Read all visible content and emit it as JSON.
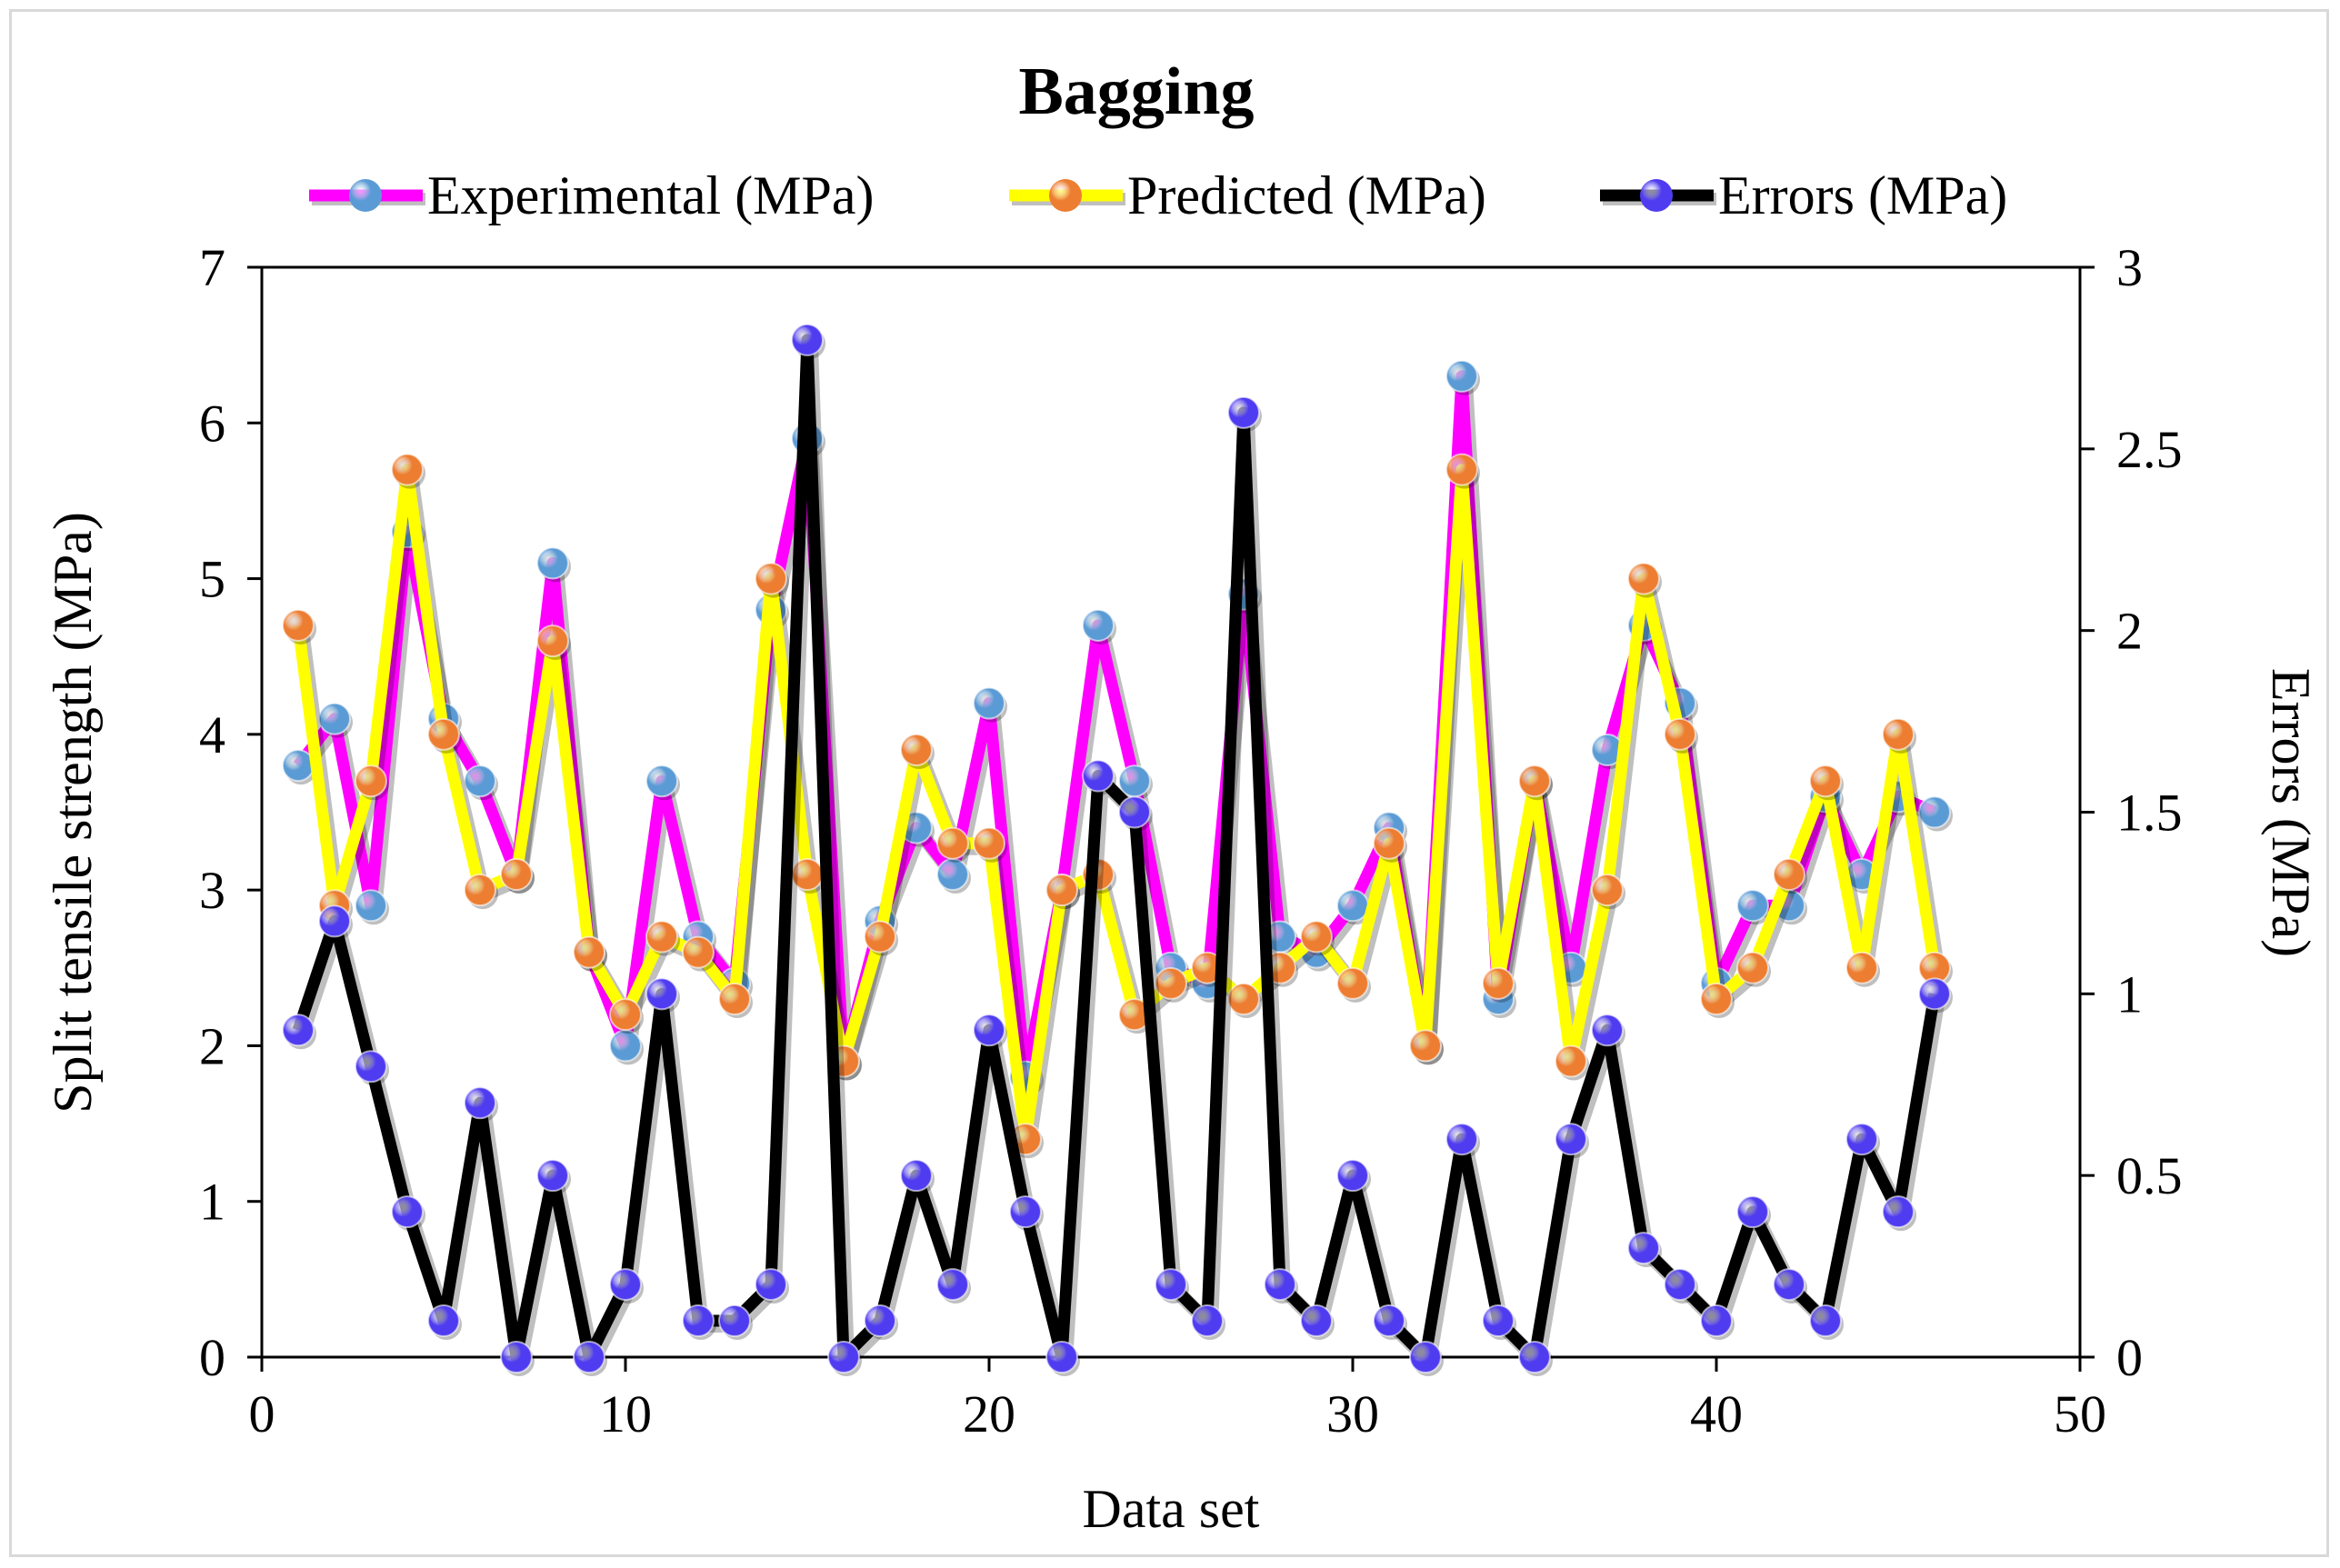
{
  "chart_data": {
    "type": "line",
    "title": "Bagging",
    "xlabel": "Data set",
    "ylabel": "Split tensile strength (MPa)",
    "y2label": "Errors (MPa)",
    "xlim": [
      0,
      50
    ],
    "ylim": [
      0,
      7
    ],
    "y2lim": [
      0,
      3
    ],
    "xticks": [
      "0",
      "10",
      "20",
      "30",
      "40",
      "50"
    ],
    "yticks": [
      "0",
      "1",
      "2",
      "3",
      "4",
      "5",
      "6",
      "7"
    ],
    "y2ticks": [
      "0",
      "0.5",
      "1",
      "1.5",
      "2",
      "2.5",
      "3"
    ],
    "legend_position": "top",
    "x": [
      1,
      2,
      3,
      4,
      5,
      6,
      7,
      8,
      9,
      10,
      11,
      12,
      13,
      14,
      15,
      16,
      17,
      18,
      19,
      20,
      21,
      22,
      23,
      24,
      25,
      26,
      27,
      28,
      29,
      30,
      31,
      32,
      33,
      34,
      35,
      36,
      37,
      38,
      39,
      40,
      41,
      42,
      43,
      44,
      45,
      46
    ],
    "series": [
      {
        "name": "Experimental (MPa)",
        "axis": "left",
        "line_color": "#ff00ff",
        "marker_color": "#5b9bd5",
        "values": [
          3.8,
          4.1,
          2.9,
          5.3,
          4.1,
          3.7,
          3.1,
          5.1,
          2.6,
          2.0,
          3.7,
          2.7,
          2.4,
          4.8,
          5.9,
          1.9,
          2.8,
          3.4,
          3.1,
          4.2,
          1.8,
          3.0,
          4.7,
          3.7,
          2.5,
          2.4,
          4.9,
          2.7,
          2.6,
          2.9,
          3.4,
          2.0,
          6.3,
          2.3,
          3.7,
          2.5,
          3.9,
          4.7,
          4.2,
          2.4,
          2.9,
          2.9,
          3.6,
          3.1,
          3.6,
          3.5
        ]
      },
      {
        "name": "Predicted (MPa)",
        "axis": "left",
        "line_color": "#ffff00",
        "marker_color": "#ed7d31",
        "values": [
          4.7,
          2.9,
          3.7,
          5.7,
          4.0,
          3.0,
          3.1,
          4.6,
          2.6,
          2.2,
          2.7,
          2.6,
          2.3,
          5.0,
          3.1,
          1.9,
          2.7,
          3.9,
          3.3,
          3.3,
          1.4,
          3.0,
          3.1,
          2.2,
          2.4,
          2.5,
          2.3,
          2.5,
          2.7,
          2.4,
          3.3,
          2.0,
          5.7,
          2.4,
          3.7,
          1.9,
          3.0,
          5.0,
          4.0,
          2.3,
          2.5,
          3.1,
          3.7,
          2.5,
          4.0,
          2.5
        ]
      },
      {
        "name": "Errors (MPa)",
        "axis": "right",
        "line_color": "#000000",
        "marker_color": "#4f3cf0",
        "values": [
          0.9,
          1.2,
          0.8,
          0.4,
          0.1,
          0.7,
          0.0,
          0.5,
          0.0,
          0.2,
          1.0,
          0.1,
          0.1,
          0.2,
          2.8,
          0.0,
          0.1,
          0.5,
          0.2,
          0.9,
          0.4,
          0.0,
          1.6,
          1.5,
          0.2,
          0.1,
          2.6,
          0.2,
          0.1,
          0.5,
          0.1,
          0.0,
          0.6,
          0.1,
          0.0,
          0.6,
          0.9,
          0.3,
          0.2,
          0.1,
          0.4,
          0.2,
          0.1,
          0.6,
          0.4,
          1.0
        ]
      }
    ]
  }
}
